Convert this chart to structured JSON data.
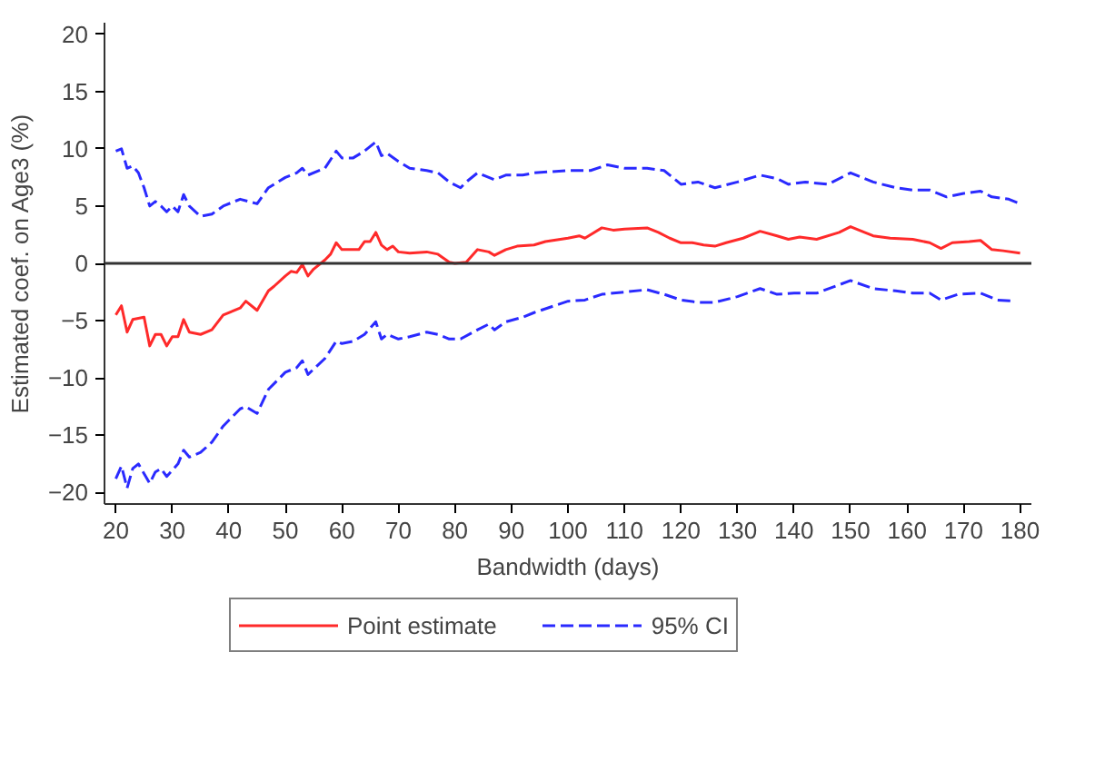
{
  "chart_data": {
    "type": "line",
    "xlabel": "Bandwidth (days)",
    "ylabel": "Estimated coef. on Age3 (%)",
    "xlim": [
      18,
      182
    ],
    "ylim": [
      -21,
      21
    ],
    "xticks": [
      20,
      30,
      40,
      50,
      60,
      70,
      80,
      90,
      100,
      110,
      120,
      130,
      140,
      150,
      160,
      170,
      180
    ],
    "yticks": [
      -20,
      -15,
      -10,
      -5,
      0,
      5,
      10,
      15,
      20
    ],
    "grid": false,
    "legend": "bottom",
    "ref_lines": [
      {
        "axis": "y",
        "value": 0,
        "color": "#333333"
      }
    ],
    "series": [
      {
        "name": "Point estimate",
        "color": "#ff2a2a",
        "line_style": "solid",
        "x": [
          20,
          21,
          22,
          23,
          25,
          26,
          27,
          28,
          29,
          30,
          31,
          32,
          33,
          35,
          37,
          39,
          42,
          43,
          45,
          47,
          48,
          50,
          51,
          52,
          53,
          54,
          55,
          57,
          58,
          59,
          60,
          62,
          63,
          64,
          65,
          66,
          67,
          68,
          69,
          70,
          72,
          75,
          77,
          79,
          80,
          82,
          84,
          86,
          87,
          89,
          91,
          94,
          96,
          100,
          102,
          103,
          106,
          108,
          110,
          114,
          116,
          118,
          120,
          122,
          124,
          126,
          128,
          131,
          134,
          137,
          139,
          141,
          144,
          148,
          150,
          154,
          157,
          161,
          164,
          166,
          168,
          171,
          173,
          175,
          177,
          180
        ],
        "values": [
          -4.5,
          -3.7,
          -6.0,
          -4.9,
          -4.7,
          -7.2,
          -6.2,
          -6.2,
          -7.2,
          -6.4,
          -6.4,
          -4.9,
          -6.0,
          -6.2,
          -5.8,
          -4.5,
          -3.9,
          -3.3,
          -4.1,
          -2.4,
          -2.0,
          -1.1,
          -0.7,
          -0.8,
          -0.1,
          -1.1,
          -0.5,
          0.3,
          0.8,
          1.8,
          1.2,
          1.2,
          1.2,
          1.9,
          1.9,
          2.7,
          1.6,
          1.2,
          1.5,
          1.0,
          0.9,
          1.0,
          0.8,
          0.1,
          0.0,
          0.1,
          1.2,
          1.0,
          0.7,
          1.2,
          1.5,
          1.6,
          1.9,
          2.2,
          2.4,
          2.2,
          3.1,
          2.9,
          3.0,
          3.1,
          2.7,
          2.2,
          1.8,
          1.8,
          1.6,
          1.5,
          1.8,
          2.2,
          2.8,
          2.4,
          2.1,
          2.3,
          2.1,
          2.7,
          3.2,
          2.4,
          2.2,
          2.1,
          1.8,
          1.3,
          1.8,
          1.9,
          2.0,
          1.2,
          1.1,
          0.9
        ]
      },
      {
        "name": "95% CI",
        "color": "#2a2aff",
        "line_style": "dashed",
        "x": [
          20,
          21,
          22,
          23,
          24,
          25,
          26,
          27,
          28,
          29,
          30,
          31,
          32,
          33,
          35,
          37,
          39,
          42,
          45,
          47,
          50,
          52,
          53,
          54,
          57,
          59,
          60,
          62,
          64,
          66,
          67,
          68,
          70,
          72,
          75,
          77,
          79,
          81,
          82,
          84,
          86,
          87,
          89,
          92,
          94,
          100,
          104,
          107,
          110,
          114,
          117,
          120,
          123,
          126,
          130,
          134,
          137,
          139,
          142,
          146,
          150,
          154,
          158,
          161,
          164,
          167,
          170,
          173,
          175,
          178,
          180
        ],
        "values": [
          9.8,
          10.0,
          8.3,
          8.5,
          7.9,
          6.6,
          5.0,
          5.4,
          5.0,
          4.5,
          5.0,
          4.5,
          6.0,
          5.0,
          4.1,
          4.3,
          5.0,
          5.6,
          5.2,
          6.6,
          7.5,
          7.9,
          8.3,
          7.7,
          8.3,
          9.8,
          9.2,
          9.2,
          9.8,
          10.6,
          9.4,
          9.6,
          8.9,
          8.3,
          8.1,
          7.9,
          7.1,
          6.6,
          7.1,
          7.9,
          7.5,
          7.3,
          7.7,
          7.7,
          7.9,
          8.1,
          8.1,
          8.6,
          8.3,
          8.3,
          8.1,
          6.9,
          7.1,
          6.6,
          7.1,
          7.7,
          7.4,
          6.9,
          7.1,
          6.9,
          7.9,
          7.1,
          6.6,
          6.4,
          6.4,
          5.8,
          6.1,
          6.3,
          5.8,
          5.6,
          5.2
        ]
      },
      {
        "color": "#2a2aff",
        "line_style": "dashed",
        "x": [
          20,
          21,
          22,
          23,
          24,
          26,
          27,
          28,
          29,
          31,
          32,
          33,
          35,
          37,
          39,
          42,
          43,
          45,
          47,
          50,
          52,
          53,
          54,
          57,
          59,
          60,
          62,
          64,
          66,
          67,
          68,
          70,
          72,
          75,
          77,
          79,
          81,
          84,
          86,
          87,
          89,
          92,
          94,
          100,
          103,
          106,
          110,
          114,
          117,
          120,
          123,
          126,
          130,
          134,
          137,
          140,
          144,
          150,
          154,
          158,
          161,
          164,
          166,
          169,
          173,
          176,
          179
        ],
        "values": [
          -18.8,
          -17.7,
          -19.6,
          -17.9,
          -17.5,
          -19.2,
          -18.2,
          -17.9,
          -18.6,
          -17.5,
          -16.3,
          -16.9,
          -16.5,
          -15.6,
          -14.2,
          -12.7,
          -12.5,
          -13.1,
          -11.0,
          -9.5,
          -9.1,
          -8.5,
          -9.7,
          -8.3,
          -6.8,
          -7.0,
          -6.8,
          -6.2,
          -5.1,
          -6.6,
          -6.2,
          -6.6,
          -6.4,
          -6.0,
          -6.2,
          -6.6,
          -6.6,
          -5.8,
          -5.3,
          -5.8,
          -5.1,
          -4.7,
          -4.3,
          -3.3,
          -3.2,
          -2.7,
          -2.5,
          -2.3,
          -2.7,
          -3.2,
          -3.4,
          -3.4,
          -2.9,
          -2.2,
          -2.7,
          -2.6,
          -2.6,
          -1.5,
          -2.2,
          -2.4,
          -2.6,
          -2.6,
          -3.2,
          -2.7,
          -2.6,
          -3.2,
          -3.3
        ]
      }
    ]
  }
}
